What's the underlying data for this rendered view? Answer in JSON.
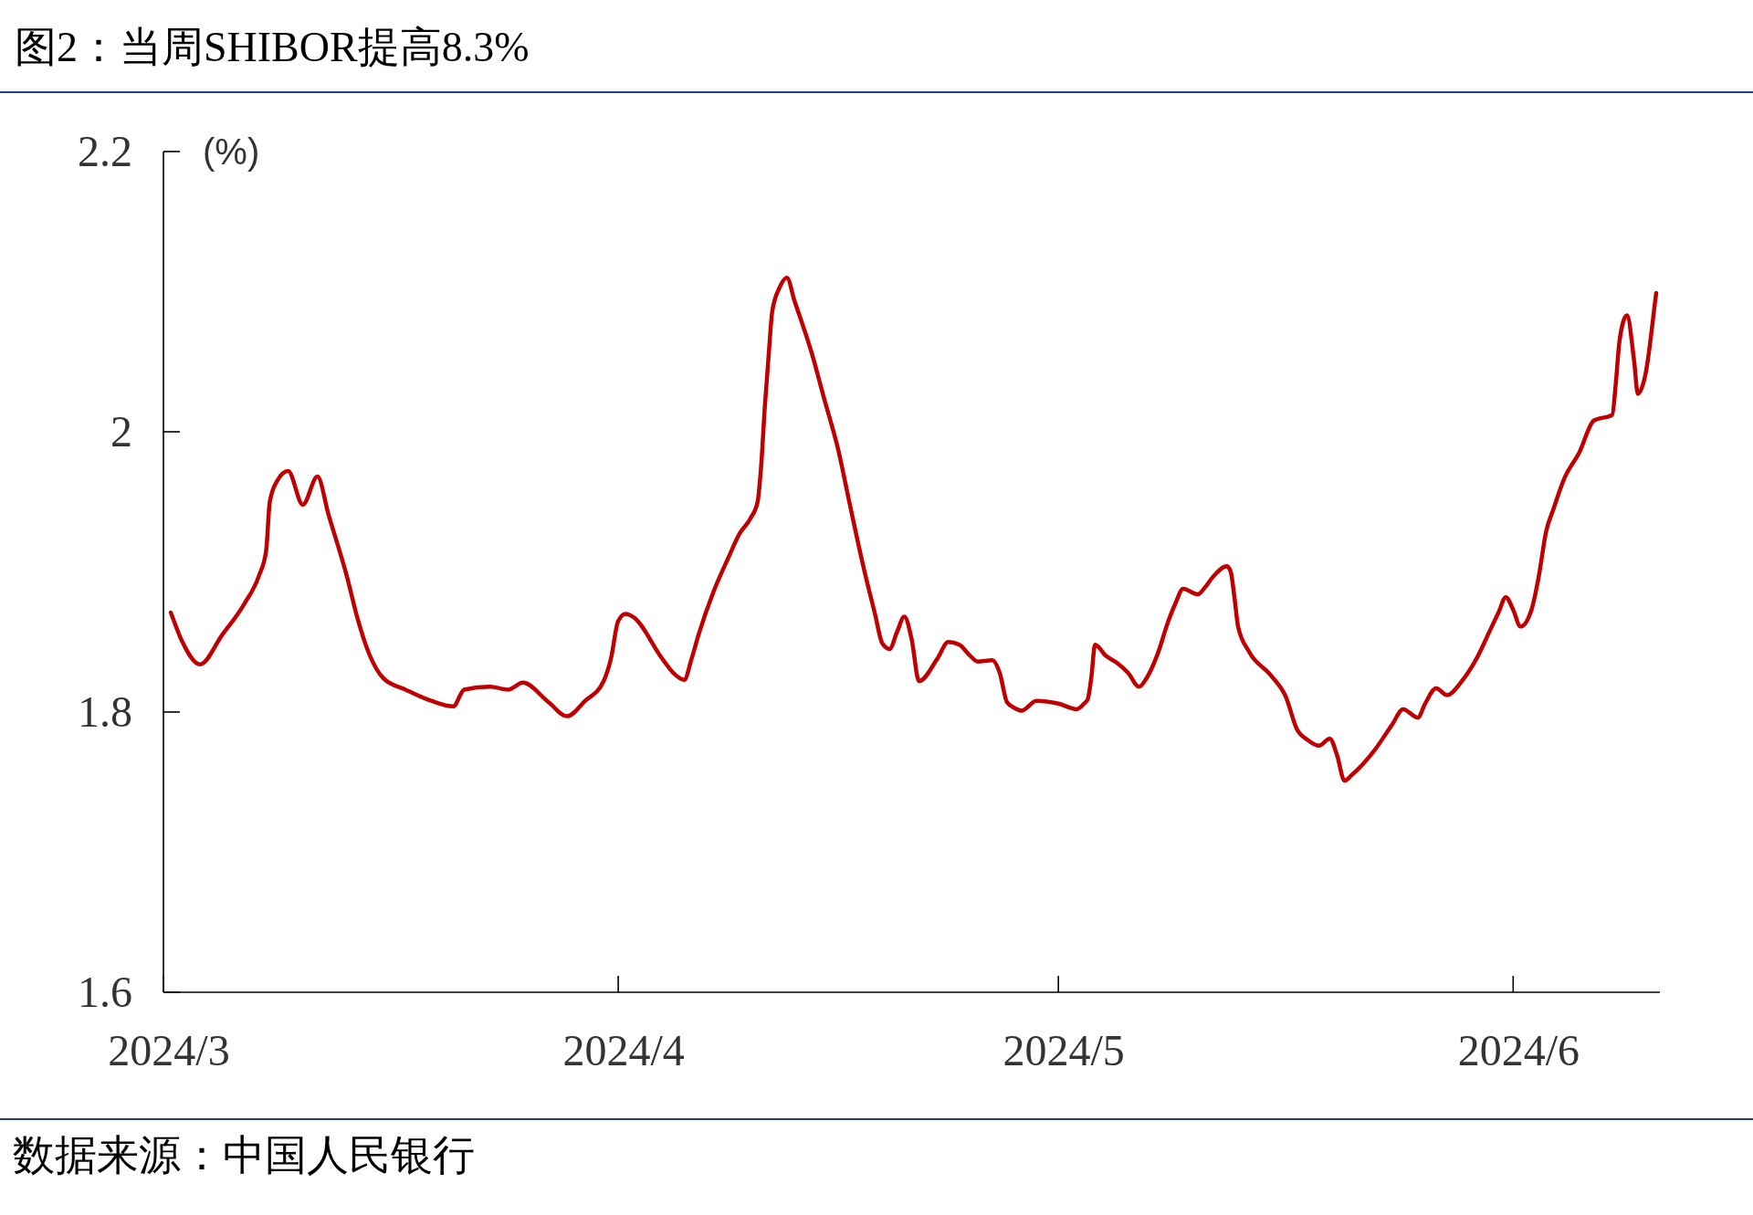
{
  "chart_data": {
    "type": "line",
    "title": "图2：当周SHIBOR提高8.3%",
    "ylabel": "(%)",
    "annotations": [
      "数据来源：中国人民银行"
    ],
    "x": [
      "2024-03-01T12:00",
      "2024-03-02T06:00",
      "2024-03-03T12:00",
      "2024-03-05",
      "2024-03-06T12:00",
      "2024-03-07T12:00",
      "2024-03-08",
      "2024-03-08T06:00",
      "2024-03-08T18:00",
      "2024-03-09T12:00",
      "2024-03-10T12:00",
      "2024-03-11T12:00",
      "2024-03-12T06:00",
      "2024-03-13T12:00",
      "2024-03-14T06:00",
      "2024-03-15",
      "2024-03-16",
      "2024-03-17T12:00",
      "2024-03-19T06:00",
      "2024-03-20T18:00",
      "2024-03-21T12:00",
      "2024-03-23T06:00",
      "2024-03-24T12:00",
      "2024-03-25T12:00",
      "2024-03-27T06:00",
      "2024-03-28T12:00",
      "2024-03-29T18:00",
      "2024-03-31",
      "2024-03-31T12:00",
      "2024-04-01",
      "2024-04-01T12:00",
      "2024-04-02",
      "2024-04-04",
      "2024-04-04T18:00",
      "2024-04-05T12:00",
      "2024-04-06",
      "2024-04-06T12:00",
      "2024-04-07T12:00",
      "2024-04-08T12:00",
      "2024-04-09T06:00",
      "2024-04-10",
      "2024-04-10T12:00",
      "2024-04-10T18:00",
      "2024-04-11",
      "2024-04-11T06:00",
      "2024-04-11T12:00",
      "2024-04-12",
      "2024-04-12T12:00",
      "2024-04-13",
      "2024-04-14T06:00",
      "2024-04-15",
      "2024-04-16",
      "2024-04-16T18:00",
      "2024-04-17T18:00",
      "2024-04-18T12:00",
      "2024-04-19",
      "2024-04-19T12:00",
      "2024-04-20",
      "2024-04-20T12:00",
      "2024-04-21",
      "2024-04-21T12:00",
      "2024-04-22T18:00",
      "2024-04-23T12:00",
      "2024-04-24T06:00",
      "2024-04-25",
      "2024-04-25T12:00",
      "2024-04-26T12:00",
      "2024-04-27",
      "2024-04-27T12:00",
      "2024-04-28",
      "2024-04-28T12:00",
      "2024-04-29T12:00",
      "2024-05-01",
      "2024-05-02T06:00",
      "2024-05-02T18:00",
      "2024-05-03",
      "2024-05-03T06:00",
      "2024-05-03T12:00",
      "2024-05-04T06:00",
      "2024-05-05",
      "2024-05-05T18:00",
      "2024-05-06T12:00",
      "2024-05-07",
      "2024-05-07T18:00",
      "2024-05-08T12:00",
      "2024-05-09",
      "2024-05-09T12:00",
      "2024-05-10T12:00",
      "2024-05-11",
      "2024-05-11T12:00",
      "2024-05-12T12:00",
      "2024-05-12T18:00",
      "2024-05-13",
      "2024-05-13T06:00",
      "2024-05-14",
      "2024-05-15T12:00",
      "2024-05-16T12:00",
      "2024-05-17T06:00",
      "2024-05-18",
      "2024-05-18T18:00",
      "2024-05-19T12:00",
      "2024-05-20",
      "2024-05-20T12:00",
      "2024-05-21",
      "2024-05-22T12:00",
      "2024-05-23T18:00",
      "2024-05-24T12:00",
      "2024-05-25T12:00",
      "2024-05-26",
      "2024-05-26T18:00",
      "2024-05-27T12:00",
      "2024-05-28T12:00",
      "2024-05-29T12:00",
      "2024-05-30T12:00",
      "2024-05-31",
      "2024-05-31T12:00",
      "2024-06-01",
      "2024-06-01T12:00",
      "2024-06-02T06:00",
      "2024-06-02T18:00",
      "2024-06-03T06:00",
      "2024-06-03T18:00",
      "2024-06-04T12:00",
      "2024-06-05T12:00",
      "2024-06-06T12:00",
      "2024-06-07T18:00",
      "2024-06-08",
      "2024-06-08T06:00",
      "2024-06-08T18:00",
      "2024-06-09T06:00",
      "2024-06-09T12:00",
      "2024-06-10",
      "2024-06-10T18:00"
    ],
    "series": [
      {
        "color": "#c00000",
        "line_style": "solid",
        "values": [
          1.871,
          1.851,
          1.834,
          1.855,
          1.877,
          1.897,
          1.915,
          1.95,
          1.965,
          1.972,
          1.948,
          1.968,
          1.941,
          1.897,
          1.866,
          1.842,
          1.824,
          1.816,
          1.808,
          1.804,
          1.816,
          1.818,
          1.816,
          1.821,
          1.807,
          1.797,
          1.808,
          1.822,
          1.838,
          1.865,
          1.87,
          1.868,
          1.838,
          1.828,
          1.823,
          1.838,
          1.856,
          1.886,
          1.91,
          1.927,
          1.938,
          1.95,
          1.977,
          2.019,
          2.054,
          2.086,
          2.103,
          2.11,
          2.094,
          2.054,
          2.025,
          1.987,
          1.95,
          1.902,
          1.87,
          1.849,
          1.845,
          1.857,
          1.868,
          1.852,
          1.822,
          1.838,
          1.85,
          1.848,
          1.84,
          1.836,
          1.837,
          1.828,
          1.807,
          1.803,
          1.801,
          1.808,
          1.806,
          1.802,
          1.806,
          1.809,
          1.825,
          1.848,
          1.84,
          1.835,
          1.828,
          1.818,
          1.824,
          1.841,
          1.865,
          1.878,
          1.888,
          1.884,
          1.889,
          1.896,
          1.904,
          1.9,
          1.882,
          1.861,
          1.843,
          1.826,
          1.811,
          1.788,
          1.78,
          1.776,
          1.781,
          1.769,
          1.751,
          1.755,
          1.772,
          1.791,
          1.802,
          1.796,
          1.806,
          1.817,
          1.812,
          1.822,
          1.838,
          1.86,
          1.871,
          1.882,
          1.873,
          1.861,
          1.873,
          1.897,
          1.929,
          1.945,
          1.967,
          1.985,
          2.008,
          2.012,
          2.035,
          2.065,
          2.083,
          2.05,
          2.027,
          2.04,
          2.099
        ]
      }
    ],
    "xlim": [
      "2024-03-01",
      "2024-06-11"
    ],
    "xticks": [
      {
        "value": "2024-03-01",
        "label": "2024/3"
      },
      {
        "value": "2024-04-01",
        "label": "2024/4"
      },
      {
        "value": "2024-05-01",
        "label": "2024/5"
      },
      {
        "value": "2024-06-01",
        "label": "2024/6"
      }
    ],
    "ylim": [
      1.6,
      2.2
    ],
    "yticks": [
      1.6,
      1.8,
      2,
      2.2
    ]
  }
}
